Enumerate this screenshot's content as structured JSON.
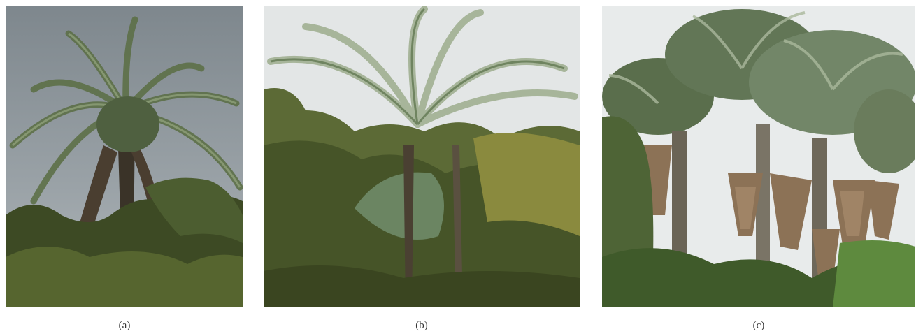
{
  "figure": {
    "panels": [
      {
        "caption": "(a)"
      },
      {
        "caption": "(b)"
      },
      {
        "caption": "(c)"
      }
    ]
  },
  "colors": {
    "sky_a": "#8f979c",
    "sky_b": "#dfe3e4",
    "sky_c": "#e9ecec",
    "foliage_dark": "#2f3a22",
    "foliage_mid": "#5f6f3a",
    "frond_light": "#9fb08c",
    "dry_fronds": "#8a6e52"
  }
}
